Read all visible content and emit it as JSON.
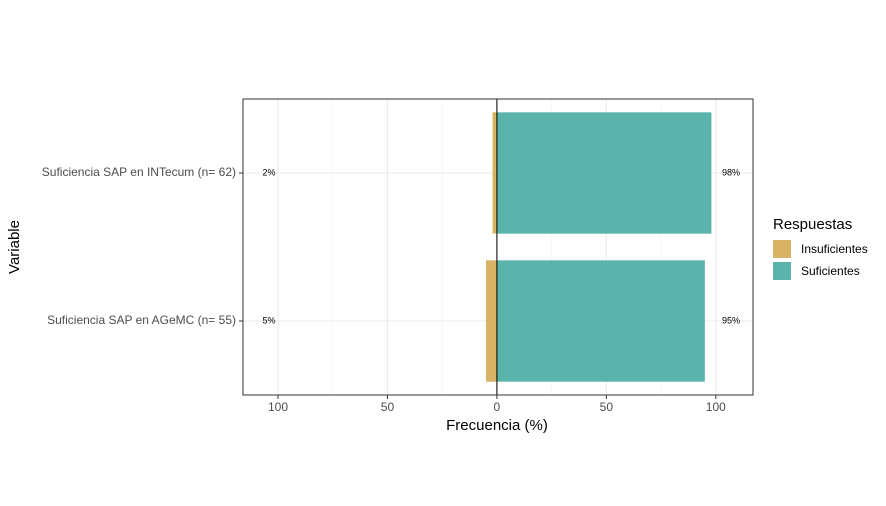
{
  "chart_data": {
    "type": "bar",
    "orientation": "horizontal",
    "categories": [
      "Suficiencia SAP en INTecum (n= 62)",
      "Suficiencia SAP en AGeMC (n= 55)"
    ],
    "series": [
      {
        "name": "Insuficientes",
        "color": "#d8b365",
        "values": [
          -2,
          -5
        ],
        "value_labels": [
          "2%",
          "5%"
        ]
      },
      {
        "name": "Suficientes",
        "color": "#5ab4ac",
        "values": [
          98,
          95
        ],
        "value_labels": [
          "98%",
          "95%"
        ]
      }
    ],
    "xlabel": "Frecuencia (%)",
    "ylabel": "Variable",
    "xlim": [
      -116,
      117
    ],
    "xticks": [
      {
        "value": -100,
        "label": "100"
      },
      {
        "value": -50,
        "label": "50"
      },
      0,
      50,
      100
    ],
    "xminorticks": [
      -75,
      -25,
      25,
      75
    ],
    "grid": true,
    "zero_line": true,
    "legend": {
      "title": "Respuestas",
      "position": "right"
    }
  }
}
